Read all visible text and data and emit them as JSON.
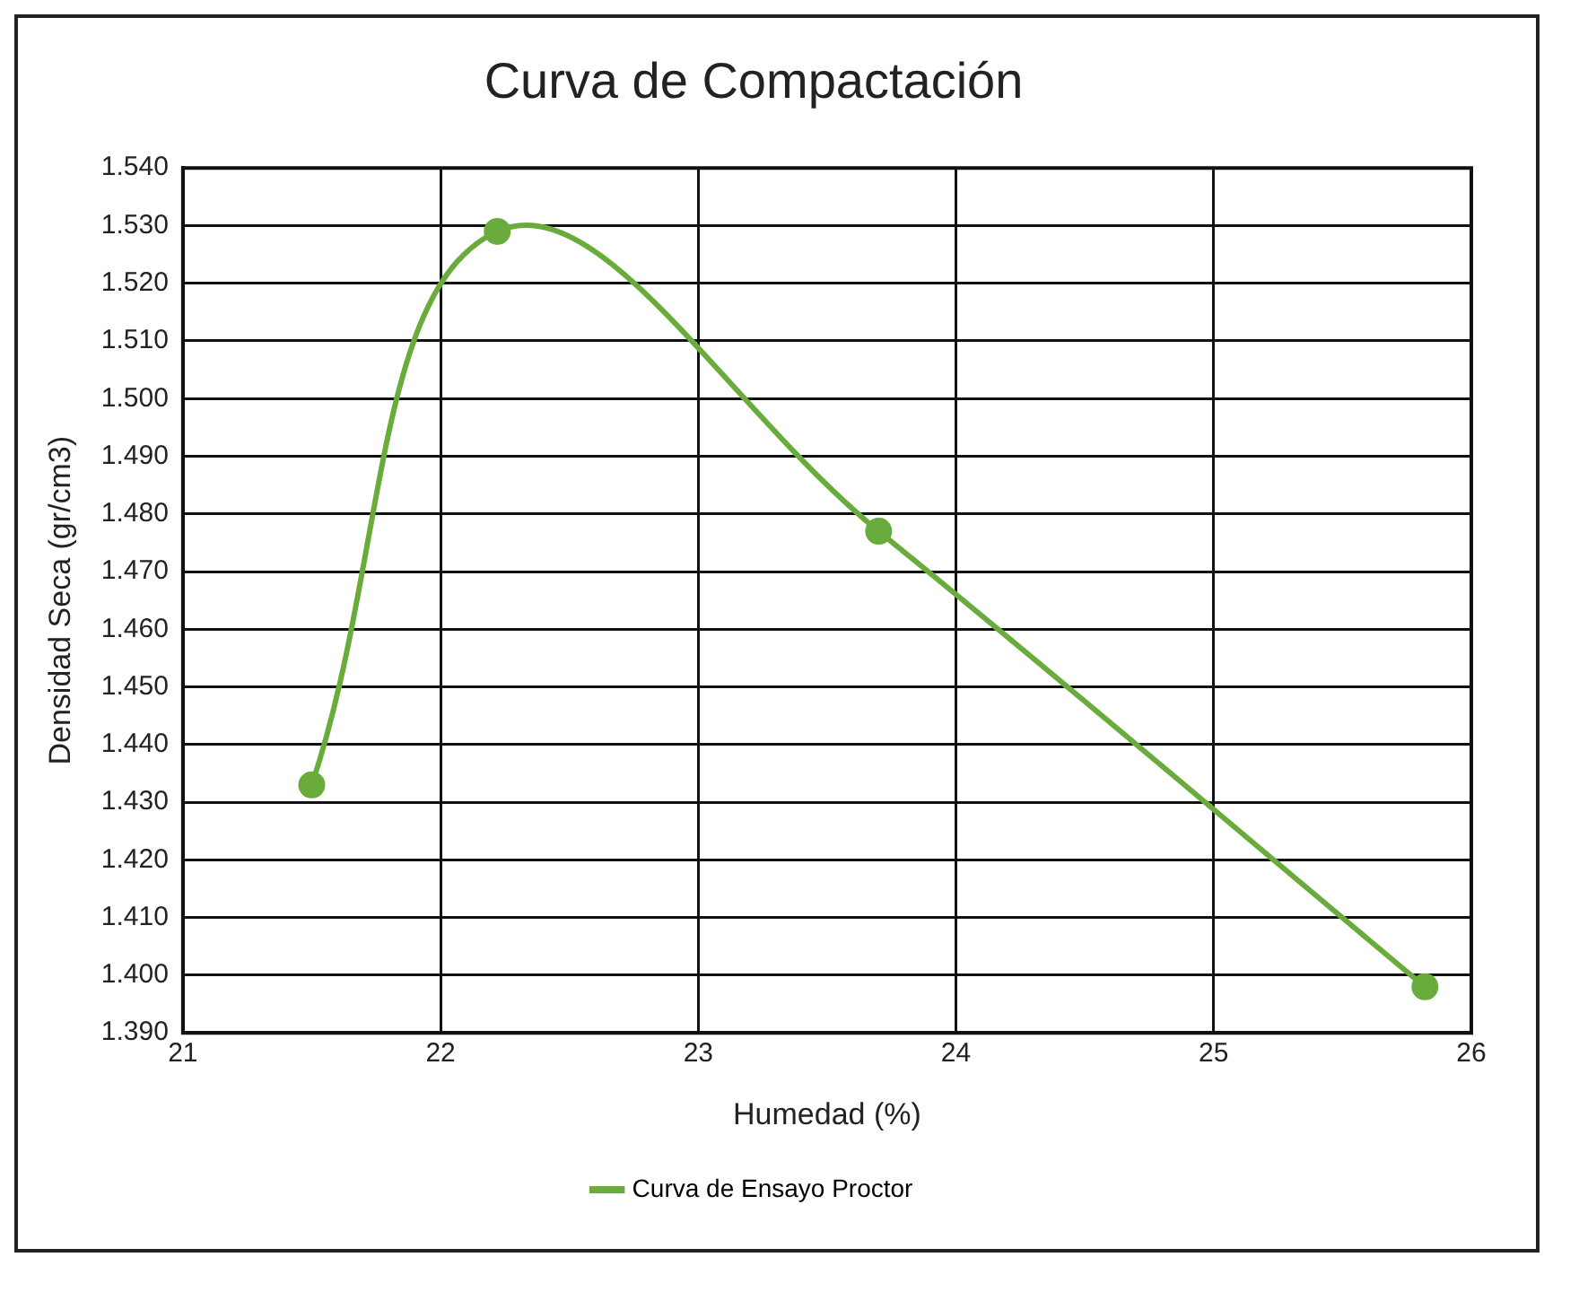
{
  "chart_data": {
    "type": "line",
    "title": "Curva de Compactación",
    "xlabel": "Humedad (%)",
    "ylabel": "Densidad Seca (gr/cm3)",
    "x": [
      21.5,
      22.22,
      23.7,
      25.82
    ],
    "series": [
      {
        "name": "Curva de Ensayo Proctor",
        "color": "#6aac3c",
        "values": [
          1.433,
          1.529,
          1.477,
          1.398
        ]
      }
    ],
    "xlim": [
      21,
      26
    ],
    "xticks": [
      21,
      22,
      23,
      24,
      25,
      26
    ],
    "ylim": [
      1.39,
      1.54
    ],
    "yticks": [
      {
        "value": 1.39,
        "label": "1.390"
      },
      {
        "value": 1.4,
        "label": "1.400"
      },
      {
        "value": 1.41,
        "label": "1.410"
      },
      {
        "value": 1.42,
        "label": "1.420"
      },
      {
        "value": 1.43,
        "label": "1.430"
      },
      {
        "value": 1.44,
        "label": "1.440"
      },
      {
        "value": 1.45,
        "label": "1.450"
      },
      {
        "value": 1.46,
        "label": "1.460"
      },
      {
        "value": 1.47,
        "label": "1.470"
      },
      {
        "value": 1.48,
        "label": "1.480"
      },
      {
        "value": 1.49,
        "label": "1.490"
      },
      {
        "value": 1.5,
        "label": "1.500"
      },
      {
        "value": 1.51,
        "label": "1.510"
      },
      {
        "value": 1.52,
        "label": "1.520"
      },
      {
        "value": 1.53,
        "label": "1.530"
      },
      {
        "value": 1.54,
        "label": "1.540"
      }
    ],
    "grid": true,
    "legend": "bottom",
    "marker": "circle",
    "line_style": "solid"
  }
}
